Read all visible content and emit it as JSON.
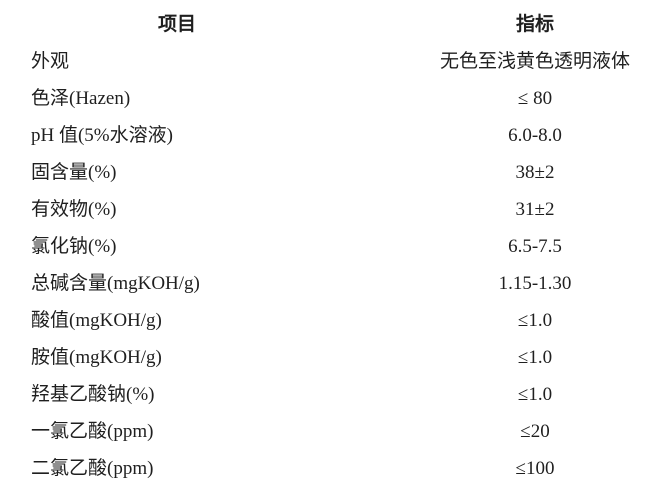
{
  "table": {
    "headers": {
      "item": "项目",
      "spec": "指标"
    },
    "rows": [
      {
        "item": "外观",
        "spec": "无色至浅黄色透明液体"
      },
      {
        "item": "色泽(Hazen)",
        "spec": "≤ 80"
      },
      {
        "item": "pH 值(5%水溶液)",
        "spec": "6.0-8.0"
      },
      {
        "item": "固含量(%)",
        "spec": "38±2"
      },
      {
        "item": "有效物(%)",
        "spec": "31±2"
      },
      {
        "item": "氯化钠(%)",
        "spec": "6.5-7.5"
      },
      {
        "item": "总碱含量(mgKOH/g)",
        "spec": "1.15-1.30"
      },
      {
        "item": "酸值(mgKOH/g)",
        "spec": "≤1.0"
      },
      {
        "item": "胺值(mgKOH/g)",
        "spec": "≤1.0"
      },
      {
        "item": "羟基乙酸钠(%)",
        "spec": "≤1.0"
      },
      {
        "item": "一氯乙酸(ppm)",
        "spec": "≤20"
      },
      {
        "item": "二氯乙酸(ppm)",
        "spec": "≤100"
      }
    ],
    "text_color": "#1f1f1f",
    "background_color": "#ffffff"
  }
}
